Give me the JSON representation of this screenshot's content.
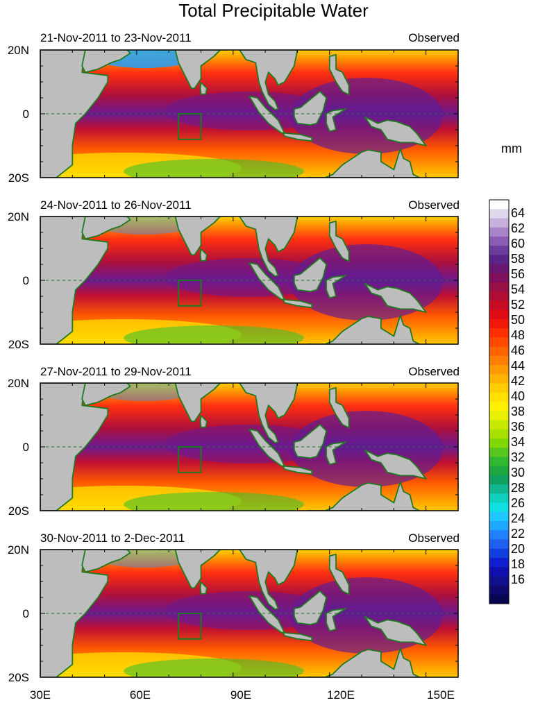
{
  "title": "Total Precipitable Water",
  "unit": "mm",
  "panels": [
    {
      "date_range": "21-Nov-2011 to 23-Nov-2011",
      "label": "Observed"
    },
    {
      "date_range": "24-Nov-2011 to 26-Nov-2011",
      "label": "Observed"
    },
    {
      "date_range": "27-Nov-2011 to 29-Nov-2011",
      "label": "Observed"
    },
    {
      "date_range": "30-Nov-2011 to 2-Dec-2011",
      "label": "Observed"
    }
  ],
  "lat_labels": [
    "20N",
    "0",
    "20S"
  ],
  "lon_labels": [
    "30E",
    "60E",
    "90E",
    "120E",
    "150E"
  ],
  "colorbar_labels": [
    "64",
    "62",
    "60",
    "58",
    "56",
    "54",
    "52",
    "50",
    "48",
    "46",
    "44",
    "42",
    "40",
    "38",
    "36",
    "34",
    "32",
    "30",
    "28",
    "26",
    "24",
    "22",
    "20",
    "18",
    "16"
  ],
  "colors": {
    "land": "#bdbdbd",
    "coast": "#1f7a1f",
    "box": "#1f7a1f"
  }
}
